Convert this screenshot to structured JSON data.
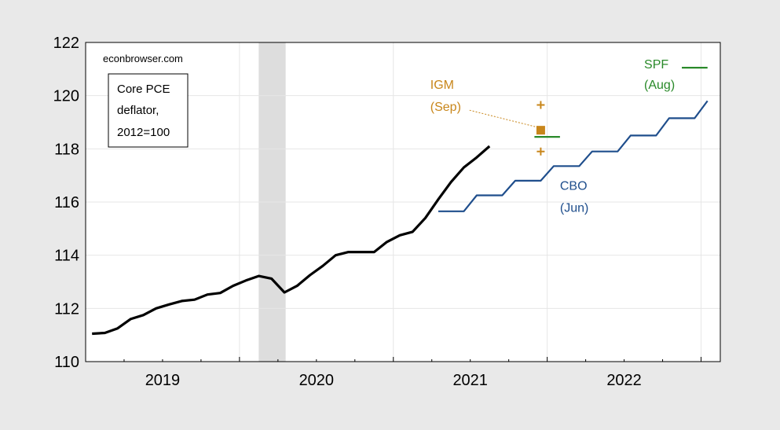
{
  "chart_data": {
    "type": "line",
    "source_label": "econbrowser.com",
    "legend_box_lines": [
      "Core PCE",
      "deflator,",
      "2012=100"
    ],
    "ylim": [
      110,
      122
    ],
    "yticks": [
      110,
      112,
      114,
      116,
      118,
      120,
      122
    ],
    "x_tick_labels": [
      {
        "label": "2019",
        "x": 2019.5
      },
      {
        "label": "2020",
        "x": 2020.5
      },
      {
        "label": "2021",
        "x": 2021.5
      },
      {
        "label": "2022",
        "x": 2022.5
      }
    ],
    "xlim": [
      2019.0,
      2023.125
    ],
    "shaded_region": {
      "start": 2020.125,
      "end": 2020.3
    },
    "colors": {
      "actual": "#000000",
      "cbo": "#1f4e8c",
      "spf": "#2a8a2a",
      "igm": "#c8861a",
      "shade": "#dddddd",
      "grid": "#e6e6e6"
    },
    "series": [
      {
        "name": "",
        "kind": "actual",
        "points": [
          [
            2019.042,
            111.05
          ],
          [
            2019.125,
            111.08
          ],
          [
            2019.208,
            111.25
          ],
          [
            2019.292,
            111.6
          ],
          [
            2019.375,
            111.75
          ],
          [
            2019.458,
            112.0
          ],
          [
            2019.542,
            112.15
          ],
          [
            2019.625,
            112.28
          ],
          [
            2019.708,
            112.33
          ],
          [
            2019.792,
            112.52
          ],
          [
            2019.875,
            112.58
          ],
          [
            2019.958,
            112.85
          ],
          [
            2020.042,
            113.05
          ],
          [
            2020.125,
            113.22
          ],
          [
            2020.208,
            113.12
          ],
          [
            2020.292,
            112.6
          ],
          [
            2020.375,
            112.85
          ],
          [
            2020.458,
            113.25
          ],
          [
            2020.542,
            113.6
          ],
          [
            2020.625,
            114.0
          ],
          [
            2020.708,
            114.12
          ],
          [
            2020.792,
            114.12
          ],
          [
            2020.875,
            114.12
          ],
          [
            2020.958,
            114.5
          ],
          [
            2021.042,
            114.75
          ],
          [
            2021.125,
            114.88
          ],
          [
            2021.208,
            115.4
          ],
          [
            2021.292,
            116.1
          ],
          [
            2021.375,
            116.75
          ],
          [
            2021.458,
            117.3
          ],
          [
            2021.542,
            117.68
          ],
          [
            2021.625,
            118.1
          ]
        ]
      },
      {
        "name": "CBO",
        "period": "(Jun)",
        "kind": "cbo",
        "points": [
          [
            2021.292,
            115.65
          ],
          [
            2021.458,
            115.65
          ],
          [
            2021.542,
            116.25
          ],
          [
            2021.708,
            116.25
          ],
          [
            2021.792,
            116.8
          ],
          [
            2021.958,
            116.8
          ],
          [
            2022.042,
            117.35
          ],
          [
            2022.208,
            117.35
          ],
          [
            2022.292,
            117.9
          ],
          [
            2022.458,
            117.9
          ],
          [
            2022.542,
            118.5
          ],
          [
            2022.708,
            118.5
          ],
          [
            2022.792,
            119.15
          ],
          [
            2022.958,
            119.15
          ],
          [
            2023.042,
            119.8
          ]
        ]
      },
      {
        "name": "SPF",
        "period": "(Aug)",
        "kind": "spf",
        "segments": [
          {
            "x1": 2021.917,
            "x2": 2022.083,
            "y": 118.45
          },
          {
            "x1": 2022.875,
            "x2": 2023.042,
            "y": 121.05
          }
        ]
      },
      {
        "name": "IGM",
        "period": "(Sep)",
        "kind": "igm",
        "point": {
          "x": 2021.958,
          "y": 118.7
        },
        "band_upper": 119.65,
        "band_lower": 117.9,
        "label_anchor": {
          "x": 2021.24,
          "y": 119.6
        }
      }
    ]
  }
}
